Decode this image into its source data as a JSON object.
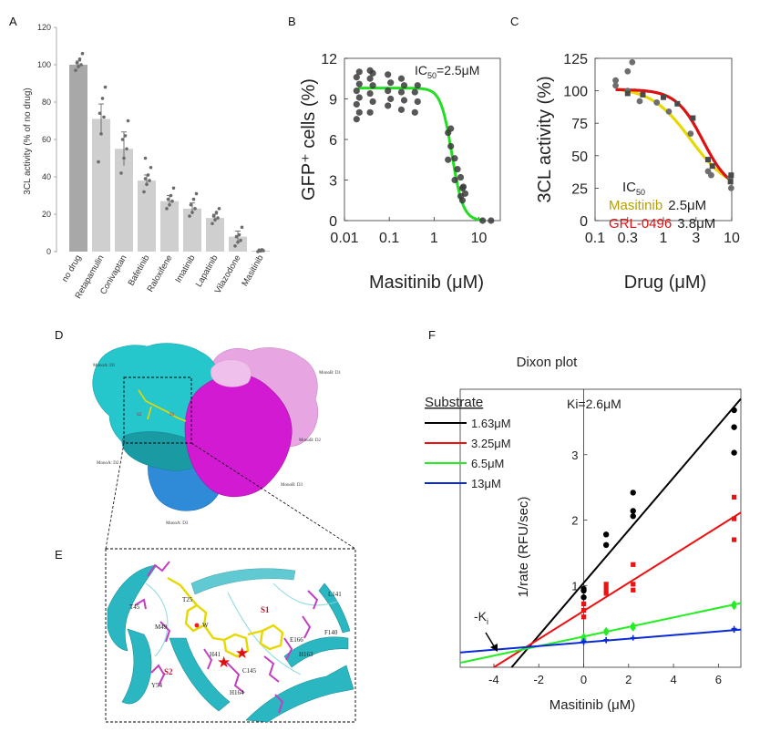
{
  "colors": {
    "bar_main": "#a8a8a8",
    "bar_other": "#cfcfcf",
    "dots": "#6b6b6b",
    "hill_green": "#22dd22",
    "masitinib_yellow": "#e6d800",
    "grl_red": "#dd1111",
    "series_black": "#000000",
    "series_red": "#ee1111",
    "series_green": "#22ee22",
    "series_blue": "#0a2ad6",
    "cyan_surface": "#25c6cc",
    "magenta_surface": "#d21ad2",
    "pink_surface": "#e7a6e2",
    "blue_surface": "#2b86d6",
    "masitinib_label_color": "#b8a000"
  },
  "panels": {
    "A": {
      "letter": "A"
    },
    "B": {
      "letter": "B",
      "annotation_ic50": "IC",
      "annotation_sub": "50",
      "annotation_val": "=2.5μM"
    },
    "C": {
      "letter": "C",
      "legend_title": "IC",
      "legend_title_sub": "50",
      "legend": [
        {
          "name": "Masitinib",
          "value": "2.5μM"
        },
        {
          "name": "GRL-0496",
          "value": "3.8μM"
        }
      ]
    },
    "D": {
      "letter": "D",
      "labels": {
        "monoA_d1": "MonoA: D1",
        "monoA_d2": "MonoA: D2",
        "monoA_d3": "MonoA: D3",
        "monoB_d1": "MonoB: D1",
        "monoB_d2": "MonoB: D2",
        "monoB_d3": "MonoB: D3",
        "s2": "S2",
        "s1": "S1"
      }
    },
    "E": {
      "letter": "E",
      "residues": {
        "t25": "T25",
        "t45": "T45",
        "m49": "M49",
        "s1": "S1",
        "s2": "S2",
        "l141": "L141",
        "f140": "F140",
        "e166": "E166",
        "h163": "H163",
        "h41": "H41",
        "c145": "C145",
        "h164": "H164",
        "y54": "Y54",
        "w": "W"
      }
    },
    "F": {
      "letter": "F",
      "title": "Dixon plot",
      "ki": "Ki=2.6μM",
      "ki_marker": "-K",
      "ki_marker_sub": "i",
      "legend_title": "Substrate"
    }
  },
  "chart_data": [
    {
      "type": "bar",
      "panel": "A",
      "categories": [
        "no drug",
        "Retapamulin",
        "Conivaptan",
        "Bafetinib",
        "Raloxifene",
        "Imatinib",
        "Lapatinib",
        "Vilazodone",
        "Masitinib"
      ],
      "values": [
        100,
        71,
        55,
        38,
        27,
        23,
        18,
        8,
        0.5
      ],
      "errors": [
        2,
        8,
        9,
        3,
        3,
        3,
        2,
        3,
        0.3
      ],
      "points": [
        [
          97,
          99,
          100,
          101,
          103,
          106
        ],
        [
          48,
          63,
          72,
          74,
          82,
          88
        ],
        [
          42,
          50,
          55,
          60,
          62,
          70
        ],
        [
          32,
          36,
          38,
          39,
          41,
          45,
          50
        ],
        [
          23,
          25,
          27,
          28,
          30,
          34
        ],
        [
          19,
          21,
          23,
          25,
          28,
          31
        ],
        [
          15,
          17,
          18,
          19,
          21,
          23
        ],
        [
          3,
          5,
          6,
          8,
          9,
          13
        ],
        [
          0,
          0.3,
          0.5,
          0.8,
          1
        ]
      ],
      "ylabel": "3CL activity (% of no drug)",
      "ylim": [
        0,
        120
      ],
      "yticks": [
        "0",
        "20",
        "40",
        "60",
        "80",
        "100",
        "120"
      ]
    },
    {
      "type": "scatter",
      "panel": "B",
      "xlabel": "Masitinib (μM)",
      "ylabel": "GFP⁺ cells (%)",
      "xscale": "log",
      "xlim": [
        0.01,
        30
      ],
      "ylim": [
        0,
        12
      ],
      "xticks": [
        "0.01",
        "0.1",
        "1",
        "10"
      ],
      "yticks": [
        "0",
        "3",
        "6",
        "9",
        "12"
      ],
      "fit": {
        "top": 9.8,
        "bottom": 0,
        "ic50": 2.5,
        "hill": 3.5
      },
      "points": [
        {
          "x": 0.02,
          "y": [
            7.5,
            8.0,
            8.6,
            9.1,
            9.6,
            10.1,
            10.6,
            11.0
          ]
        },
        {
          "x": 0.04,
          "y": [
            8.0,
            8.8,
            9.4,
            10.0,
            10.5,
            10.9,
            11.1
          ]
        },
        {
          "x": 0.1,
          "y": [
            8.5,
            9.0,
            9.6,
            10.2,
            10.8
          ]
        },
        {
          "x": 0.2,
          "y": [
            8.2,
            8.9,
            9.5,
            10.0,
            10.5
          ]
        },
        {
          "x": 0.4,
          "y": [
            8.0,
            8.8,
            9.5,
            10.0
          ]
        },
        {
          "x": 2.2,
          "y": [
            4.5,
            5.5,
            6.5,
            6.8
          ]
        },
        {
          "x": 3.1,
          "y": [
            3.0,
            3.8,
            4.6
          ]
        },
        {
          "x": 4.2,
          "y": [
            1.8,
            2.5,
            3.2
          ]
        },
        {
          "x": 4.6,
          "y": [
            1.5,
            2.0,
            2.4
          ]
        },
        {
          "x": 13,
          "y": [
            0
          ]
        },
        {
          "x": 20,
          "y": [
            0
          ]
        }
      ]
    },
    {
      "type": "scatter",
      "panel": "C",
      "xlabel": "Drug (μM)",
      "ylabel": "3CL activity (%)",
      "xscale": "log",
      "xlim": [
        0.1,
        10
      ],
      "ylim": [
        0,
        125
      ],
      "xticks": [
        "0.1",
        "0.3",
        "1",
        "3",
        "10"
      ],
      "yticks": [
        "0",
        "25",
        "50",
        "75",
        "100",
        "125"
      ],
      "series": [
        {
          "name": "Masitinib",
          "ic50": 2.5,
          "top": 103,
          "bottom": 22,
          "hill": 1.5,
          "points": [
            [
              0.2,
              104
            ],
            [
              0.2,
              108
            ],
            [
              0.3,
              100
            ],
            [
              0.3,
              115
            ],
            [
              0.35,
              122
            ],
            [
              0.45,
              92
            ],
            [
              0.8,
              91
            ],
            [
              1.2,
              84
            ],
            [
              2.5,
              67
            ],
            [
              4.5,
              38
            ],
            [
              5.0,
              35
            ],
            [
              9.5,
              33
            ],
            [
              9.8,
              25
            ]
          ]
        },
        {
          "name": "GRL-0496",
          "ic50": 3.8,
          "top": 101,
          "bottom": 22,
          "hill": 2.2,
          "points": [
            [
              0.3,
              98
            ],
            [
              0.5,
              97
            ],
            [
              1.0,
              95
            ],
            [
              1.6,
              90
            ],
            [
              2.7,
              79
            ],
            [
              4.5,
              47
            ],
            [
              5.2,
              42
            ],
            [
              9.6,
              30
            ],
            [
              9.8,
              35
            ]
          ]
        }
      ]
    },
    {
      "type": "scatter",
      "panel": "F",
      "title": "Dixon plot",
      "xlabel": "Masitinib (μM)",
      "ylabel": "1/rate (RFU/sec)",
      "xlim": [
        -5.5,
        7
      ],
      "ylim": [
        -0.25,
        4
      ],
      "xticks": [
        "-4",
        "-2",
        "0",
        "2",
        "4",
        "6"
      ],
      "yticks": [
        "1",
        "2",
        "3"
      ],
      "legend_title": "Substrate",
      "series": [
        {
          "name": "1.63μM",
          "slope": 0.402,
          "intercept": 1.04,
          "points": [
            [
              0,
              0.82
            ],
            [
              0,
              0.92
            ],
            [
              0,
              0.95
            ],
            [
              1,
              1.62
            ],
            [
              1,
              1.78
            ],
            [
              2.2,
              2.06
            ],
            [
              2.2,
              2.14
            ],
            [
              2.2,
              2.42
            ],
            [
              6.7,
              3.03
            ],
            [
              6.7,
              3.42
            ],
            [
              6.7,
              3.68
            ]
          ]
        },
        {
          "name": "3.25μM",
          "slope": 0.215,
          "intercept": 0.61,
          "points": [
            [
              0,
              0.52
            ],
            [
              0,
              0.62
            ],
            [
              0,
              0.72
            ],
            [
              1,
              0.88
            ],
            [
              1,
              0.95
            ],
            [
              1,
              1.02
            ],
            [
              2.2,
              0.93
            ],
            [
              2.2,
              1.02
            ],
            [
              2.2,
              1.32
            ],
            [
              6.7,
              1.7
            ],
            [
              6.7,
              2.02
            ],
            [
              6.7,
              2.35
            ]
          ]
        },
        {
          "name": "6.5μM",
          "slope": 0.073,
          "intercept": 0.22,
          "points": [
            [
              0,
              0.18
            ],
            [
              0,
              0.22
            ],
            [
              1,
              0.28
            ],
            [
              1,
              0.31
            ],
            [
              2.2,
              0.35
            ],
            [
              2.2,
              0.39
            ],
            [
              6.7,
              0.68
            ],
            [
              6.7,
              0.72
            ]
          ]
        },
        {
          "name": "13μM",
          "slope": 0.028,
          "intercept": 0.13,
          "points": [
            [
              0,
              0.13
            ],
            [
              0,
              0.15
            ],
            [
              1,
              0.16
            ],
            [
              1,
              0.17
            ],
            [
              2.2,
              0.2
            ],
            [
              6.7,
              0.32
            ],
            [
              6.7,
              0.34
            ]
          ]
        }
      ]
    }
  ]
}
